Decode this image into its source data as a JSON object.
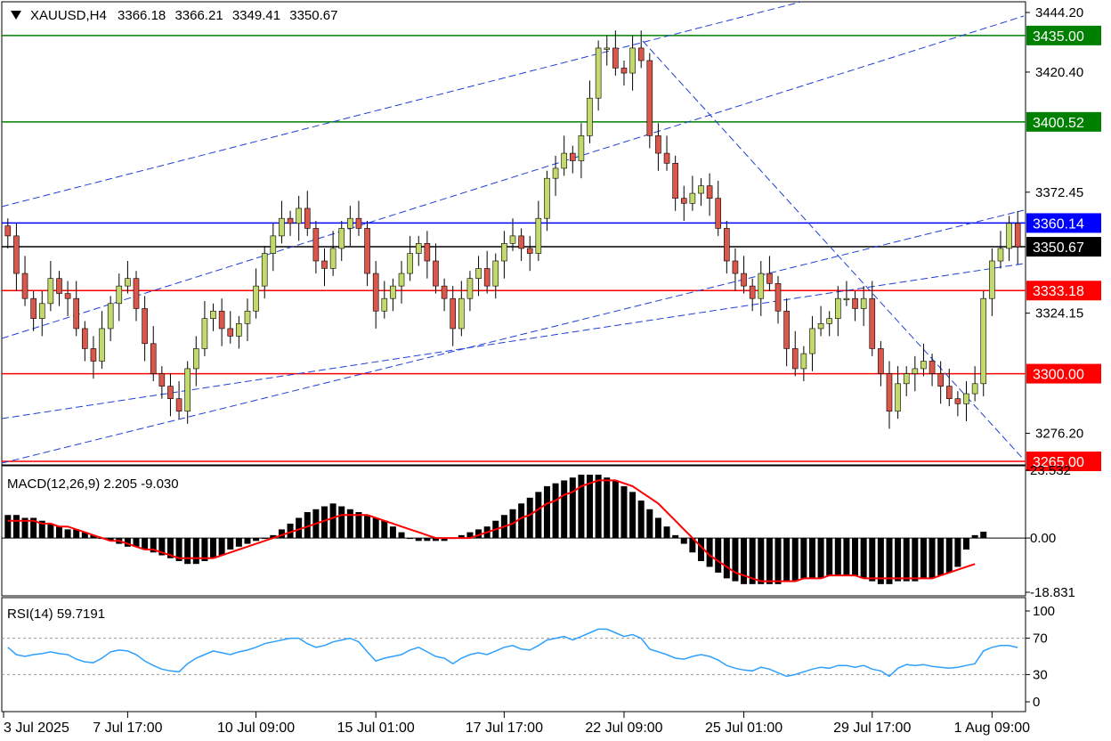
{
  "header": {
    "symbol": "XAUUSD,H4",
    "open": "3366.18",
    "high": "3366.21",
    "low": "3349.41",
    "close": "3350.67"
  },
  "macd_header": "MACD(12,26,9) 2.205 -9.030",
  "rsi_header": "RSI(14) 59.7191",
  "colors": {
    "bull_candle": "#c2d96b",
    "bear_candle": "#d9574b",
    "support_resistance_red": "#ff0000",
    "resistance_green": "#008000",
    "price_blue": "#0000ff",
    "trend_dash_blue": "#1f3fd6",
    "macd_signal": "#ff0000",
    "rsi_line": "#2ea0ff"
  },
  "chart_data": [
    {
      "type": "candlestick",
      "title": "XAUUSD,H4",
      "ylim": [
        3265,
        3444.2
      ],
      "y_ticks": [
        "3444.20",
        "3420.40",
        "3372.45",
        "3324.15",
        "3276.20"
      ],
      "x_ticks": [
        "3 Jul 2025",
        "7 Jul 17:00",
        "10 Jul 09:00",
        "15 Jul 01:00",
        "17 Jul 17:00",
        "22 Jul 09:00",
        "25 Jul 01:00",
        "29 Jul 17:00",
        "1 Aug 09:00"
      ],
      "levels": [
        {
          "label": "3435.00",
          "value": 3435.0,
          "color": "green"
        },
        {
          "label": "3400.52",
          "value": 3400.52,
          "color": "green"
        },
        {
          "label": "3360.14",
          "value": 3360.14,
          "color": "blue"
        },
        {
          "label": "3350.67",
          "value": 3350.67,
          "color": "black"
        },
        {
          "label": "3333.18",
          "value": 3333.18,
          "color": "red"
        },
        {
          "label": "3300.00",
          "value": 3300.0,
          "color": "red"
        },
        {
          "label": "3265.00",
          "value": 3265.0,
          "color": "red"
        }
      ],
      "close_series": [
        3355,
        3340,
        3330,
        3322,
        3328,
        3338,
        3332,
        3330,
        3318,
        3310,
        3305,
        3318,
        3328,
        3335,
        3338,
        3326,
        3312,
        3300,
        3295,
        3290,
        3285,
        3302,
        3310,
        3322,
        3325,
        3318,
        3315,
        3320,
        3325,
        3335,
        3348,
        3355,
        3362,
        3360,
        3366,
        3358,
        3345,
        3342,
        3350,
        3358,
        3362,
        3358,
        3340,
        3325,
        3330,
        3335,
        3340,
        3348,
        3352,
        3345,
        3335,
        3330,
        3318,
        3330,
        3338,
        3342,
        3335,
        3345,
        3352,
        3355,
        3350,
        3348,
        3362,
        3378,
        3382,
        3388,
        3385,
        3395,
        3410,
        3430,
        3430,
        3422,
        3420,
        3430,
        3425,
        3395,
        3388,
        3384,
        3370,
        3368,
        3372,
        3375,
        3370,
        3358,
        3345,
        3340,
        3335,
        3330,
        3340,
        3336,
        3325,
        3310,
        3302,
        3308,
        3318,
        3320,
        3322,
        3330,
        3330,
        3326,
        3330,
        3310,
        3300,
        3285,
        3296,
        3300,
        3302,
        3305,
        3300,
        3295,
        3290,
        3288,
        3292,
        3296,
        3330,
        3345,
        3350,
        3360,
        3350.67
      ]
    },
    {
      "type": "bar",
      "title": "MACD(12,26,9) 2.205 -9.030",
      "ylim": [
        -18.831,
        23.532
      ],
      "y_ticks": [
        "23.532",
        "0.00",
        "-18.831"
      ],
      "series": [
        {
          "name": "MACD",
          "values": [
            8,
            8,
            7,
            7,
            6,
            5,
            4,
            3,
            3,
            2,
            1,
            0,
            -1,
            -2,
            -3,
            -3,
            -4,
            -5,
            -6,
            -7,
            -8,
            -9,
            -9,
            -8,
            -7,
            -6,
            -4,
            -3,
            -2,
            -1,
            0,
            1,
            3,
            5,
            7,
            9,
            10,
            11,
            12,
            11,
            10,
            9,
            8,
            7,
            6,
            4,
            2,
            0,
            -1,
            -1,
            -1,
            -1,
            0,
            1,
            2,
            3,
            4,
            6,
            8,
            10,
            12,
            14,
            16,
            18,
            19,
            20,
            21,
            22,
            22,
            22,
            21,
            20,
            18,
            16,
            13,
            10,
            7,
            4,
            1,
            -2,
            -5,
            -8,
            -10,
            -12,
            -14,
            -15,
            -16,
            -16,
            -16,
            -16,
            -16,
            -15,
            -15,
            -14,
            -14,
            -14,
            -13,
            -13,
            -13,
            -13,
            -14,
            -15,
            -16,
            -16,
            -15,
            -15,
            -15,
            -14,
            -14,
            -13,
            -12,
            -10,
            -4,
            1,
            2.205
          ]
        },
        {
          "name": "Signal",
          "values": [
            6,
            6,
            6,
            6,
            5,
            5,
            4,
            4,
            3,
            2,
            1,
            0,
            -1,
            -1,
            -2,
            -3,
            -4,
            -4,
            -5,
            -6,
            -7,
            -7,
            -7,
            -7,
            -7,
            -6,
            -5,
            -4,
            -3,
            -2,
            -1,
            0,
            1,
            2,
            3,
            4,
            5,
            6,
            7,
            8,
            8,
            8,
            8,
            7,
            6,
            5,
            4,
            3,
            2,
            1,
            0,
            0,
            0,
            0,
            0,
            1,
            2,
            3,
            4,
            5,
            7,
            8,
            10,
            12,
            13,
            15,
            16,
            18,
            19,
            20,
            20,
            20,
            19,
            18,
            16,
            14,
            12,
            9,
            6,
            3,
            0,
            -3,
            -6,
            -8,
            -10,
            -12,
            -13,
            -14,
            -15,
            -15,
            -15,
            -15,
            -15,
            -14,
            -14,
            -14,
            -13,
            -13,
            -13,
            -13,
            -14,
            -14,
            -14,
            -14,
            -14,
            -14,
            -14,
            -14,
            -14,
            -13,
            -12,
            -11,
            -10,
            -9.03
          ]
        }
      ]
    },
    {
      "type": "line",
      "title": "RSI(14) 59.7191",
      "ylim": [
        0,
        100
      ],
      "y_ticks": [
        "100",
        "70",
        "30",
        "0"
      ],
      "levels": [
        70,
        30
      ],
      "series": [
        {
          "name": "RSI(14)",
          "values": [
            60,
            52,
            50,
            52,
            53,
            55,
            53,
            52,
            47,
            44,
            43,
            48,
            55,
            57,
            56,
            52,
            45,
            40,
            36,
            34,
            33,
            42,
            48,
            52,
            56,
            54,
            52,
            55,
            57,
            60,
            64,
            66,
            68,
            70,
            70,
            64,
            60,
            62,
            66,
            68,
            70,
            66,
            55,
            45,
            48,
            50,
            52,
            57,
            60,
            55,
            50,
            48,
            42,
            48,
            52,
            54,
            52,
            56,
            60,
            62,
            58,
            57,
            62,
            68,
            70,
            72,
            68,
            72,
            76,
            80,
            80,
            76,
            72,
            74,
            70,
            58,
            55,
            52,
            48,
            47,
            50,
            52,
            50,
            46,
            40,
            37,
            35,
            34,
            38,
            36,
            32,
            28,
            30,
            33,
            36,
            38,
            37,
            40,
            40,
            38,
            40,
            36,
            34,
            28,
            37,
            41,
            40,
            41,
            39,
            38,
            37,
            38,
            40,
            42,
            56,
            60,
            62,
            62,
            59.7191
          ]
        }
      ]
    }
  ]
}
